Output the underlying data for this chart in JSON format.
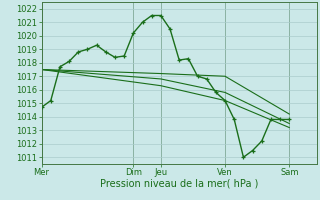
{
  "background_color": "#cbe8e8",
  "grid_color": "#aacccc",
  "line_color": "#1a6e1a",
  "xlabel": "Pression niveau de la mer( hPa )",
  "ylim": [
    1010.5,
    1022.5
  ],
  "yticks": [
    1011,
    1012,
    1013,
    1014,
    1015,
    1016,
    1017,
    1018,
    1019,
    1020,
    1021,
    1022
  ],
  "xlim": [
    0,
    30
  ],
  "x_day_labels": [
    "Mer",
    "Dim",
    "Jeu",
    "Ven",
    "Sam"
  ],
  "x_day_positions": [
    0,
    10,
    13,
    20,
    27
  ],
  "x_day_vlines": [
    0,
    10,
    13,
    20,
    27
  ],
  "series": [
    {
      "x": [
        0,
        1,
        2,
        3,
        4,
        5,
        6,
        7,
        8,
        9,
        10,
        11,
        12,
        13,
        14,
        15,
        16,
        17,
        18,
        19,
        20,
        21,
        22,
        23,
        24,
        25,
        26,
        27
      ],
      "y": [
        1014.7,
        1015.2,
        1017.7,
        1018.1,
        1018.8,
        1019.0,
        1019.3,
        1018.8,
        1018.4,
        1018.5,
        1020.2,
        1021.0,
        1021.5,
        1021.5,
        1020.5,
        1018.2,
        1018.3,
        1017.0,
        1016.8,
        1015.8,
        1015.2,
        1013.8,
        1011.0,
        1011.5,
        1012.2,
        1013.8,
        1013.8,
        1013.8
      ],
      "linewidth": 1.0,
      "with_markers": true
    },
    {
      "x": [
        0,
        13,
        20,
        27
      ],
      "y": [
        1017.5,
        1017.2,
        1017.0,
        1014.2
      ],
      "linewidth": 0.8,
      "with_markers": false
    },
    {
      "x": [
        0,
        13,
        20,
        27
      ],
      "y": [
        1017.5,
        1016.8,
        1015.8,
        1013.5
      ],
      "linewidth": 0.8,
      "with_markers": false
    },
    {
      "x": [
        0,
        13,
        20,
        27
      ],
      "y": [
        1017.5,
        1016.3,
        1015.2,
        1013.2
      ],
      "linewidth": 0.8,
      "with_markers": false
    }
  ]
}
